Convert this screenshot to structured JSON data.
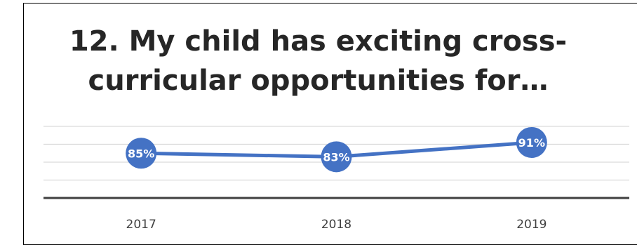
{
  "chart_data": {
    "type": "line",
    "title": "12. My child has exciting cross-curricular opportunities for…",
    "title_lines": [
      "12. My child has exciting cross-",
      "curricular opportunities for…"
    ],
    "categories": [
      "2017",
      "2018",
      "2019"
    ],
    "series": [
      {
        "values": [
          85,
          83,
          91
        ],
        "data_labels": [
          "85%",
          "83%",
          "91%"
        ],
        "color": "#4472C4"
      }
    ],
    "ylim": [
      60,
      100
    ],
    "grid": true,
    "legend": "none",
    "axis_color": "#404040",
    "grid_color": "#D9D9D9"
  }
}
